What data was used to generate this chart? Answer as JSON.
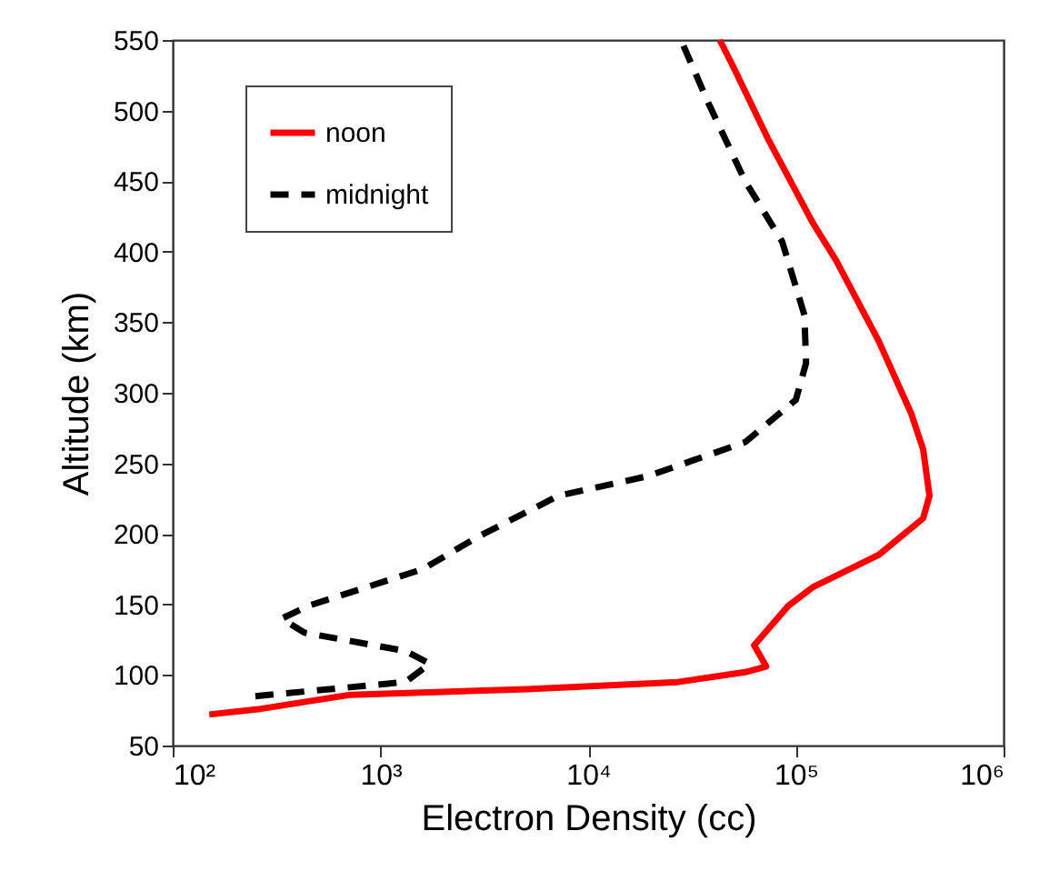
{
  "chart_data": {
    "type": "line",
    "xlabel": "Electron Density (cc)",
    "ylabel": "Altitude (km)",
    "log": "x",
    "xlim": [
      100,
      1000000
    ],
    "xticks": [
      {
        "value": 100,
        "label": "10²"
      },
      {
        "value": 1000,
        "label": "10³"
      },
      {
        "value": 10000,
        "label": "10⁴"
      },
      {
        "value": 100000,
        "label": "10⁵"
      },
      {
        "value": 1000000,
        "label": "10⁶"
      }
    ],
    "ylim": [
      50,
      550
    ],
    "yticks": [
      50,
      100,
      150,
      200,
      250,
      300,
      350,
      400,
      450,
      500,
      550
    ],
    "grid": false,
    "legend": "top left",
    "marker": "none",
    "series": [
      {
        "name": "noon",
        "color": "#ff0000",
        "line_style": "solid",
        "x": [
          150,
          265,
          720,
          5100,
          27000,
          57000,
          72000,
          63000,
          92000,
          120000,
          250000,
          410000,
          440000,
          410000,
          360000,
          250000,
          156000,
          120000,
          74000,
          50000,
          43000
        ],
        "values": [
          72,
          76,
          86,
          90,
          95,
          102,
          106,
          121,
          149,
          162,
          185,
          211,
          227,
          260,
          285,
          337,
          394,
          421,
          479,
          531,
          550
        ]
      },
      {
        "name": "midnight",
        "color": "#000000",
        "line_style": "dashed",
        "x": [
          250,
          1320,
          1730,
          1320,
          430,
          335,
          450,
          1600,
          2950,
          7200,
          19500,
          57000,
          100000,
          112000,
          110000,
          86000,
          57000,
          38000,
          28000
        ],
        "values": [
          85,
          95,
          108,
          117,
          130,
          140,
          149,
          175,
          198,
          227,
          241,
          265,
          295,
          321,
          355,
          407,
          450,
          505,
          550
        ]
      }
    ]
  }
}
